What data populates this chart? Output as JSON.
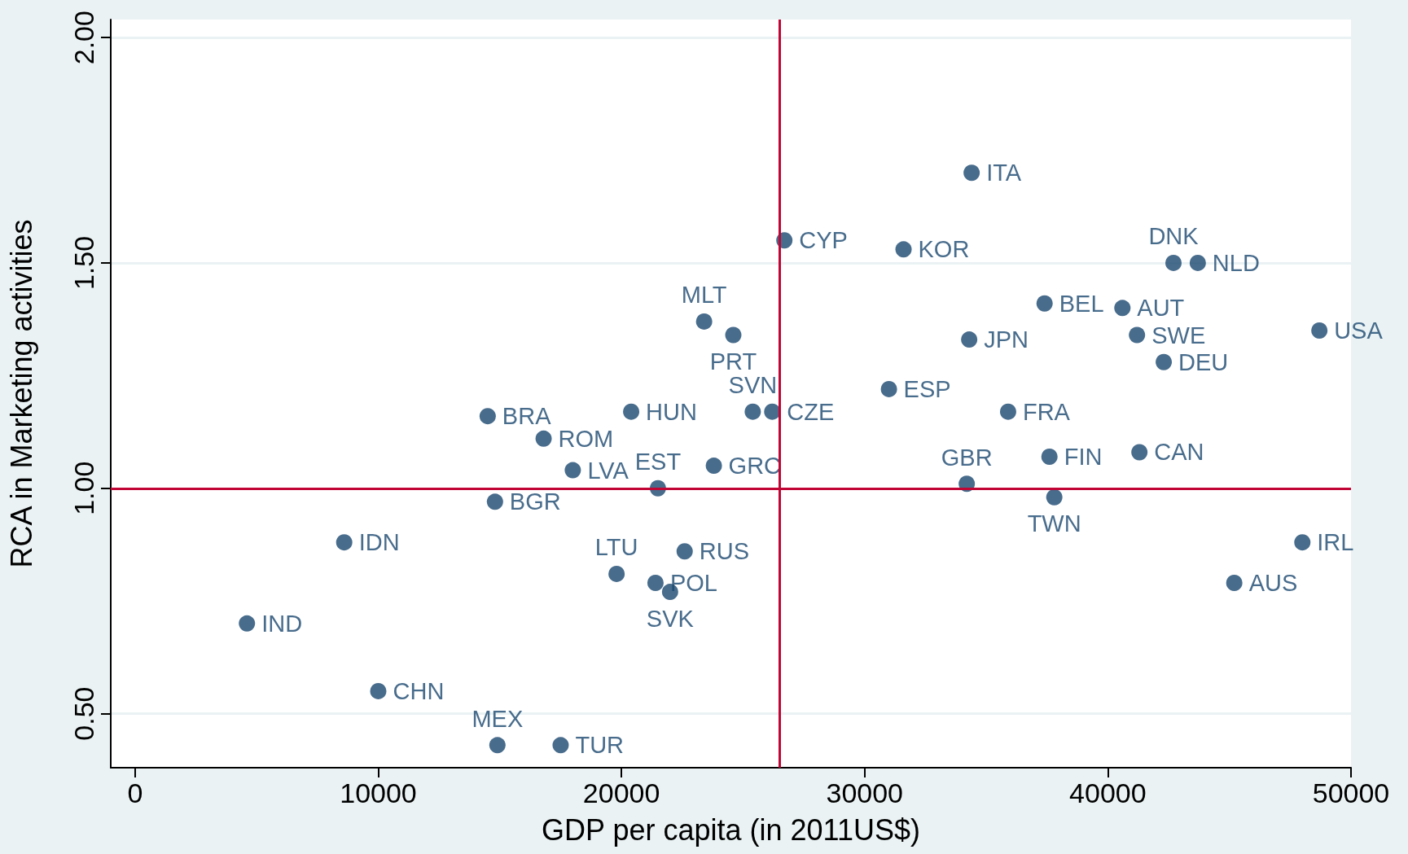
{
  "chart_data": {
    "type": "scatter",
    "xlabel": "GDP per capita (in 2011US$)",
    "ylabel": "RCA in Marketing activities",
    "x": [
      34400,
      26700,
      31600,
      42700,
      43700,
      37400,
      40600,
      48700,
      23400,
      24600,
      34300,
      41200,
      42300,
      31000,
      14500,
      20400,
      25400,
      26200,
      35900,
      16800,
      37600,
      41300,
      18000,
      23800,
      21500,
      34200,
      37800,
      14800,
      8600,
      48000,
      22600,
      19800,
      21400,
      22000,
      45200,
      4600,
      10000,
      14900,
      17500
    ],
    "series": [
      {
        "color": "#1a476f",
        "values": [
          1.7,
          1.55,
          1.53,
          1.5,
          1.5,
          1.41,
          1.4,
          1.35,
          1.37,
          1.34,
          1.33,
          1.34,
          1.28,
          1.22,
          1.16,
          1.17,
          1.17,
          1.17,
          1.17,
          1.11,
          1.07,
          1.08,
          1.04,
          1.05,
          1.0,
          1.01,
          0.98,
          0.97,
          0.88,
          0.88,
          0.86,
          0.81,
          0.79,
          0.77,
          0.79,
          0.7,
          0.55,
          0.43,
          0.43
        ],
        "value_labels": [
          "ITA",
          "CYP",
          "KOR",
          "DNK",
          "NLD",
          "BEL",
          "AUT",
          "USA",
          "MLT",
          "PRT",
          "JPN",
          "SWE",
          "DEU",
          "ESP",
          "BRA",
          "HUN",
          "SVN",
          "CZE",
          "FRA",
          "ROM",
          "FIN",
          "CAN",
          "LVA",
          "GRC",
          "EST",
          "GBR",
          "TWN",
          "BGR",
          "IDN",
          "IRL",
          "RUS",
          "LTU",
          "POL",
          "SVK",
          "AUS",
          "IND",
          "CHN",
          "MEX",
          "TUR"
        ]
      }
    ],
    "xlim": [
      -1000,
      50000
    ],
    "xticks": [
      0,
      10000,
      20000,
      30000,
      40000,
      50000
    ],
    "ylim": [
      0.38,
      2.04
    ],
    "yticks": [
      {
        "value": 0.5,
        "label": "0.50"
      },
      {
        "value": 1,
        "label": "1.00"
      },
      {
        "value": 1.5,
        "label": "1.50"
      },
      {
        "value": 2,
        "label": "2.00"
      }
    ],
    "ref_lines": [
      {
        "axis": "x",
        "value": 26500,
        "color": "#c10534"
      },
      {
        "axis": "y",
        "value": 1,
        "color": "#c10534"
      }
    ],
    "grid": "y",
    "marker": "circle"
  }
}
